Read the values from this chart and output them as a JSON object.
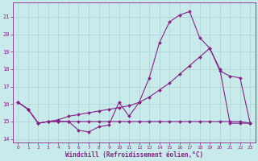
{
  "xlabel": "Windchill (Refroidissement éolien,°C)",
  "background_color": "#c8eaea",
  "grid_color": "#aad4d4",
  "line_color": "#882288",
  "xlim_min": -0.5,
  "xlim_max": 23.5,
  "ylim_min": 13.8,
  "ylim_max": 21.8,
  "yticks": [
    14,
    15,
    16,
    17,
    18,
    19,
    20,
    21
  ],
  "xticks": [
    0,
    1,
    2,
    3,
    4,
    5,
    6,
    7,
    8,
    9,
    10,
    11,
    12,
    13,
    14,
    15,
    16,
    17,
    18,
    19,
    20,
    21,
    22,
    23
  ],
  "line1_x": [
    0,
    1,
    2,
    3,
    4,
    5,
    6,
    7,
    8,
    9,
    10,
    11,
    12,
    13,
    14,
    15,
    16,
    17,
    18,
    19,
    20,
    21,
    22,
    23
  ],
  "line1_y": [
    16.1,
    15.7,
    14.9,
    15.0,
    15.0,
    15.0,
    14.5,
    14.4,
    14.7,
    14.8,
    16.1,
    15.3,
    16.1,
    17.5,
    19.5,
    20.7,
    21.1,
    21.3,
    19.8,
    19.2,
    18.0,
    14.9,
    14.9,
    14.9
  ],
  "line2_x": [
    0,
    1,
    2,
    3,
    4,
    5,
    6,
    7,
    8,
    9,
    10,
    11,
    12,
    13,
    14,
    15,
    16,
    17,
    18,
    19,
    20,
    21,
    22,
    23
  ],
  "line2_y": [
    16.1,
    15.7,
    14.9,
    15.0,
    15.0,
    15.0,
    15.0,
    15.0,
    15.0,
    15.0,
    15.0,
    15.0,
    15.0,
    15.0,
    15.0,
    15.0,
    15.0,
    15.0,
    15.0,
    15.0,
    15.0,
    15.0,
    15.0,
    14.9
  ],
  "line3_x": [
    0,
    1,
    2,
    3,
    4,
    5,
    6,
    7,
    8,
    9,
    10,
    11,
    12,
    13,
    14,
    15,
    16,
    17,
    18,
    19,
    20,
    21,
    22,
    23
  ],
  "line3_y": [
    16.1,
    15.7,
    14.9,
    15.0,
    15.1,
    15.3,
    15.4,
    15.5,
    15.6,
    15.7,
    15.8,
    15.9,
    16.1,
    16.4,
    16.8,
    17.2,
    17.7,
    18.2,
    18.7,
    19.2,
    17.9,
    17.6,
    17.5,
    14.9
  ],
  "tick_fontsize": 4.5,
  "xlabel_fontsize": 5.5,
  "marker_size": 2.0,
  "line_width": 0.8
}
